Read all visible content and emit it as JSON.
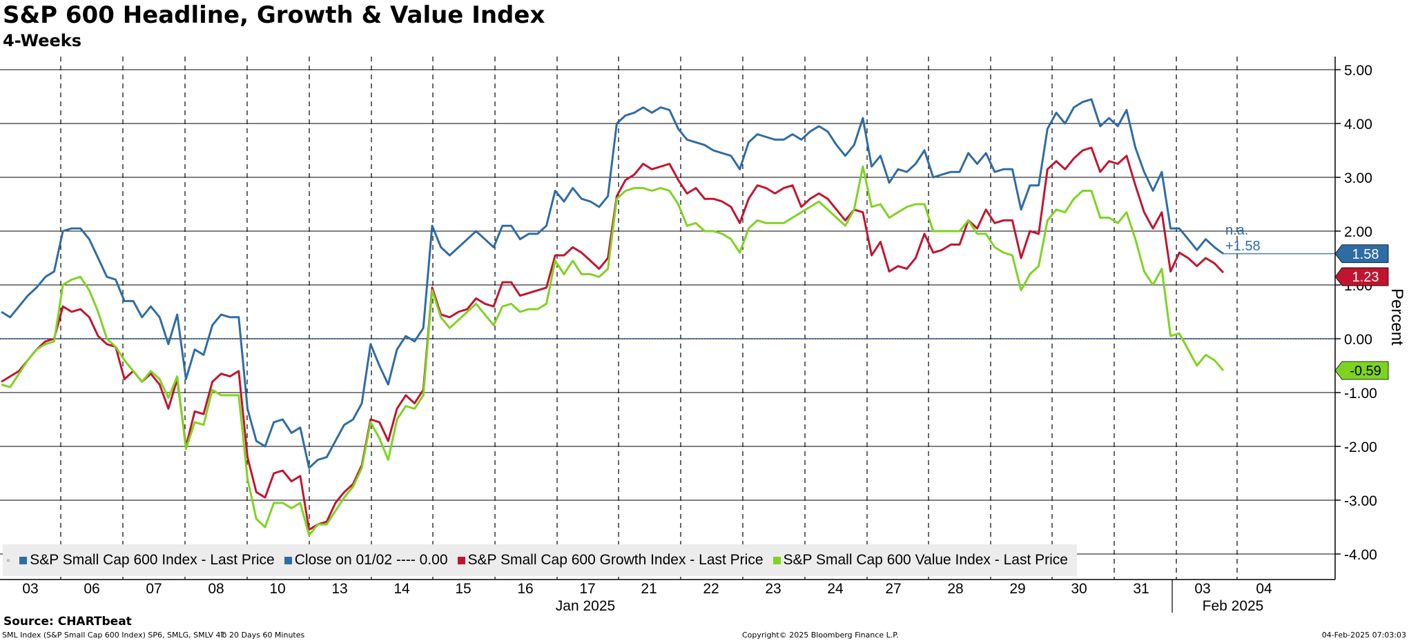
{
  "header": {
    "title": "S&P 600 Headline, Growth & Value Index",
    "subtitle": "4-Weeks"
  },
  "footer": {
    "source": "Source: CHARTbeat",
    "meta": "SML Index (S&P Small Cap 600 Index) SP6, SMLG, SMLV 4℔ 20 Days 60 Minutes",
    "copyright": "Copyright© 2025 Bloomberg Finance L.P.",
    "timestamp": "04-Feb-2025 07:03:03"
  },
  "legend": {
    "items": [
      {
        "label": "S&P Small Cap 600 Index - Last Price",
        "color": "#2e6ca4"
      },
      {
        "label": "Close on 01/02 ---- 0.00",
        "color": "#2e6ca4"
      },
      {
        "label": "S&P Small Cap 600 Growth Index - Last Price",
        "color": "#c0152f"
      },
      {
        "label": "S&P Small Cap 600 Value Index - Last Price",
        "color": "#7ed321"
      }
    ]
  },
  "annotations": {
    "na_label": "n.a.",
    "na_value": "+1.58"
  },
  "chart_data": {
    "type": "line",
    "ylabel": "Percent",
    "ylim": [
      -4.3,
      5.2
    ],
    "yticks": [
      "5.00",
      "4.00",
      "3.00",
      "2.00",
      "1.00",
      "0.00",
      "-1.00",
      "-2.00",
      "-3.00",
      "-4.00"
    ],
    "ytick_values": [
      5,
      4,
      3,
      2,
      1,
      0,
      -1,
      -2,
      -3,
      -4
    ],
    "xlabels": [
      "03",
      "06",
      "07",
      "08",
      "10",
      "13",
      "14",
      "15",
      "16",
      "17",
      "21",
      "22",
      "23",
      "24",
      "27",
      "28",
      "29",
      "30",
      "31",
      "03",
      "04"
    ],
    "month_labels": [
      "Jan 2025",
      "Feb 2025"
    ],
    "reference_line": {
      "label": "Close on 01/02",
      "value": 0.0
    },
    "last_values": [
      "1.58",
      "1.23",
      "-0.59"
    ],
    "grid": true,
    "legend_position": "bottom",
    "series": [
      {
        "name": "S&P Small Cap 600 Index - Last Price",
        "color": "#2e6ca4",
        "values": [
          0.5,
          0.4,
          0.6,
          0.8,
          0.95,
          1.15,
          1.25,
          2.0,
          2.05,
          2.05,
          1.85,
          1.5,
          1.15,
          1.1,
          0.7,
          0.7,
          0.4,
          0.6,
          0.4,
          -0.1,
          0.45,
          -0.75,
          -0.2,
          -0.3,
          0.25,
          0.45,
          0.4,
          0.4,
          -1.3,
          -1.9,
          -2.0,
          -1.55,
          -1.5,
          -1.75,
          -1.65,
          -2.4,
          -2.25,
          -2.2,
          -1.9,
          -1.6,
          -1.5,
          -1.2,
          -0.1,
          -0.5,
          -0.85,
          -0.2,
          0.05,
          -0.05,
          0.2,
          2.1,
          1.7,
          1.55,
          1.7,
          1.85,
          2.0,
          1.85,
          1.7,
          2.1,
          2.1,
          1.85,
          1.95,
          1.95,
          2.1,
          2.75,
          2.55,
          2.8,
          2.6,
          2.55,
          2.45,
          2.65,
          4.0,
          4.15,
          4.2,
          4.3,
          4.2,
          4.3,
          4.25,
          3.9,
          3.7,
          3.65,
          3.6,
          3.5,
          3.45,
          3.4,
          3.15,
          3.65,
          3.8,
          3.75,
          3.7,
          3.7,
          3.8,
          3.7,
          3.85,
          3.95,
          3.85,
          3.6,
          3.4,
          3.6,
          4.1,
          3.2,
          3.4,
          2.9,
          3.15,
          3.1,
          3.25,
          3.5,
          3.0,
          3.05,
          3.1,
          3.1,
          3.45,
          3.25,
          3.45,
          3.1,
          3.15,
          3.15,
          2.4,
          2.85,
          2.85,
          3.9,
          4.2,
          4.0,
          4.3,
          4.4,
          4.45,
          3.95,
          4.1,
          3.95,
          4.25,
          3.55,
          3.1,
          2.75,
          3.1,
          2.05,
          2.05,
          1.85,
          1.65,
          1.85,
          1.7,
          1.58
        ]
      },
      {
        "name": "S&P Small Cap 600 Growth Index - Last Price",
        "color": "#c0152f",
        "values": [
          -0.8,
          -0.7,
          -0.6,
          -0.4,
          -0.2,
          -0.05,
          0.0,
          0.6,
          0.5,
          0.55,
          0.4,
          0.05,
          -0.1,
          -0.15,
          -0.75,
          -0.6,
          -0.8,
          -0.65,
          -0.85,
          -1.3,
          -0.75,
          -2.0,
          -1.35,
          -1.4,
          -0.8,
          -0.65,
          -0.7,
          -0.6,
          -2.2,
          -2.85,
          -2.95,
          -2.5,
          -2.45,
          -2.65,
          -2.55,
          -3.55,
          -3.45,
          -3.4,
          -3.05,
          -2.85,
          -2.7,
          -2.35,
          -1.5,
          -1.55,
          -1.9,
          -1.3,
          -1.05,
          -1.2,
          -0.95,
          0.95,
          0.45,
          0.4,
          0.5,
          0.55,
          0.75,
          0.65,
          0.6,
          1.05,
          1.05,
          0.8,
          0.85,
          0.9,
          0.95,
          1.55,
          1.55,
          1.7,
          1.6,
          1.45,
          1.3,
          1.5,
          2.65,
          2.95,
          3.05,
          3.25,
          3.15,
          3.2,
          3.25,
          2.95,
          2.7,
          2.8,
          2.6,
          2.6,
          2.55,
          2.45,
          2.15,
          2.6,
          2.85,
          2.8,
          2.7,
          2.8,
          2.85,
          2.45,
          2.6,
          2.7,
          2.6,
          2.4,
          2.2,
          2.4,
          2.35,
          1.55,
          1.8,
          1.25,
          1.35,
          1.3,
          1.5,
          1.95,
          1.6,
          1.65,
          1.75,
          1.75,
          2.2,
          2.05,
          2.4,
          2.15,
          2.2,
          2.2,
          1.5,
          2.0,
          1.95,
          3.15,
          3.3,
          3.15,
          3.35,
          3.5,
          3.55,
          3.1,
          3.3,
          3.25,
          3.4,
          2.85,
          2.35,
          2.05,
          2.35,
          1.25,
          1.6,
          1.5,
          1.35,
          1.5,
          1.4,
          1.23
        ]
      },
      {
        "name": "S&P Small Cap 600 Value Index - Last Price",
        "color": "#7ed321",
        "values": [
          -0.85,
          -0.9,
          -0.65,
          -0.4,
          -0.2,
          -0.1,
          -0.05,
          1.0,
          1.1,
          1.15,
          0.9,
          0.5,
          0.0,
          -0.15,
          -0.4,
          -0.6,
          -0.8,
          -0.6,
          -0.75,
          -1.1,
          -0.7,
          -2.05,
          -1.55,
          -1.6,
          -0.95,
          -1.05,
          -1.05,
          -1.05,
          -2.6,
          -3.35,
          -3.5,
          -3.05,
          -3.05,
          -3.15,
          -3.05,
          -3.65,
          -3.45,
          -3.45,
          -3.2,
          -2.95,
          -2.75,
          -2.4,
          -1.55,
          -1.85,
          -2.25,
          -1.5,
          -1.25,
          -1.3,
          -1.05,
          0.9,
          0.4,
          0.2,
          0.35,
          0.5,
          0.65,
          0.45,
          0.25,
          0.6,
          0.65,
          0.5,
          0.55,
          0.55,
          0.65,
          1.45,
          1.2,
          1.45,
          1.2,
          1.2,
          1.15,
          1.3,
          2.6,
          2.75,
          2.8,
          2.8,
          2.75,
          2.8,
          2.75,
          2.5,
          2.1,
          2.15,
          2.0,
          2.0,
          1.95,
          1.85,
          1.6,
          2.05,
          2.2,
          2.15,
          2.15,
          2.15,
          2.25,
          2.35,
          2.45,
          2.55,
          2.4,
          2.25,
          2.1,
          2.4,
          3.2,
          2.45,
          2.5,
          2.25,
          2.35,
          2.45,
          2.5,
          2.5,
          2.0,
          2.0,
          2.0,
          2.0,
          2.2,
          1.95,
          1.95,
          1.7,
          1.6,
          1.55,
          0.9,
          1.2,
          1.35,
          2.2,
          2.4,
          2.35,
          2.6,
          2.75,
          2.75,
          2.25,
          2.25,
          2.15,
          2.35,
          1.85,
          1.25,
          1.0,
          1.3,
          0.05,
          0.1,
          -0.2,
          -0.5,
          -0.3,
          -0.4,
          -0.59
        ]
      }
    ]
  }
}
